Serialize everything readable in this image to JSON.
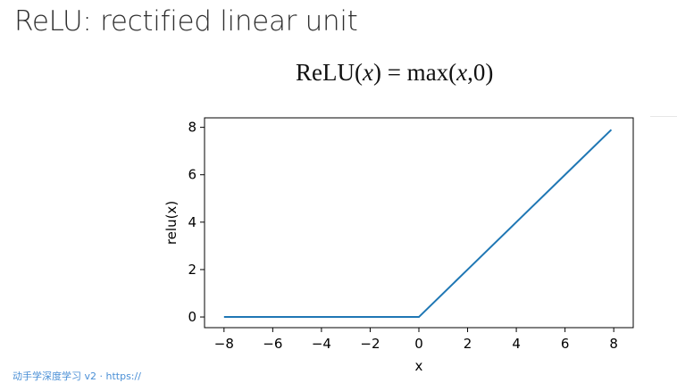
{
  "slide": {
    "title": "ReLU: rectified linear unit",
    "formula": {
      "lhs": "ReLU(",
      "var1": "x",
      "mid": ") = max(",
      "var2": "x",
      "rhs": ",0)"
    },
    "footer": "动手学深度学习 v2 · https://"
  },
  "chart_data": {
    "type": "line",
    "title": "",
    "xlabel": "x",
    "ylabel": "relu(x)",
    "xlim": [
      -8.8,
      8.8
    ],
    "ylim": [
      -0.45,
      8.4
    ],
    "xticks": [
      -8,
      -6,
      -4,
      -2,
      0,
      2,
      4,
      6,
      8
    ],
    "yticks": [
      0,
      2,
      4,
      6,
      8
    ],
    "xtick_labels": [
      "−8",
      "−6",
      "−4",
      "−2",
      "0",
      "2",
      "4",
      "6",
      "8"
    ],
    "ytick_labels": [
      "0",
      "2",
      "4",
      "6",
      "8"
    ],
    "grid": false,
    "series": [
      {
        "color": "#1f77b4",
        "x": [
          -8.0,
          -6.0,
          -4.0,
          -2.0,
          0.0,
          2.0,
          4.0,
          6.0,
          7.9
        ],
        "y": [
          0.0,
          0.0,
          0.0,
          0.0,
          0.0,
          2.0,
          4.0,
          6.0,
          7.9
        ]
      }
    ]
  }
}
